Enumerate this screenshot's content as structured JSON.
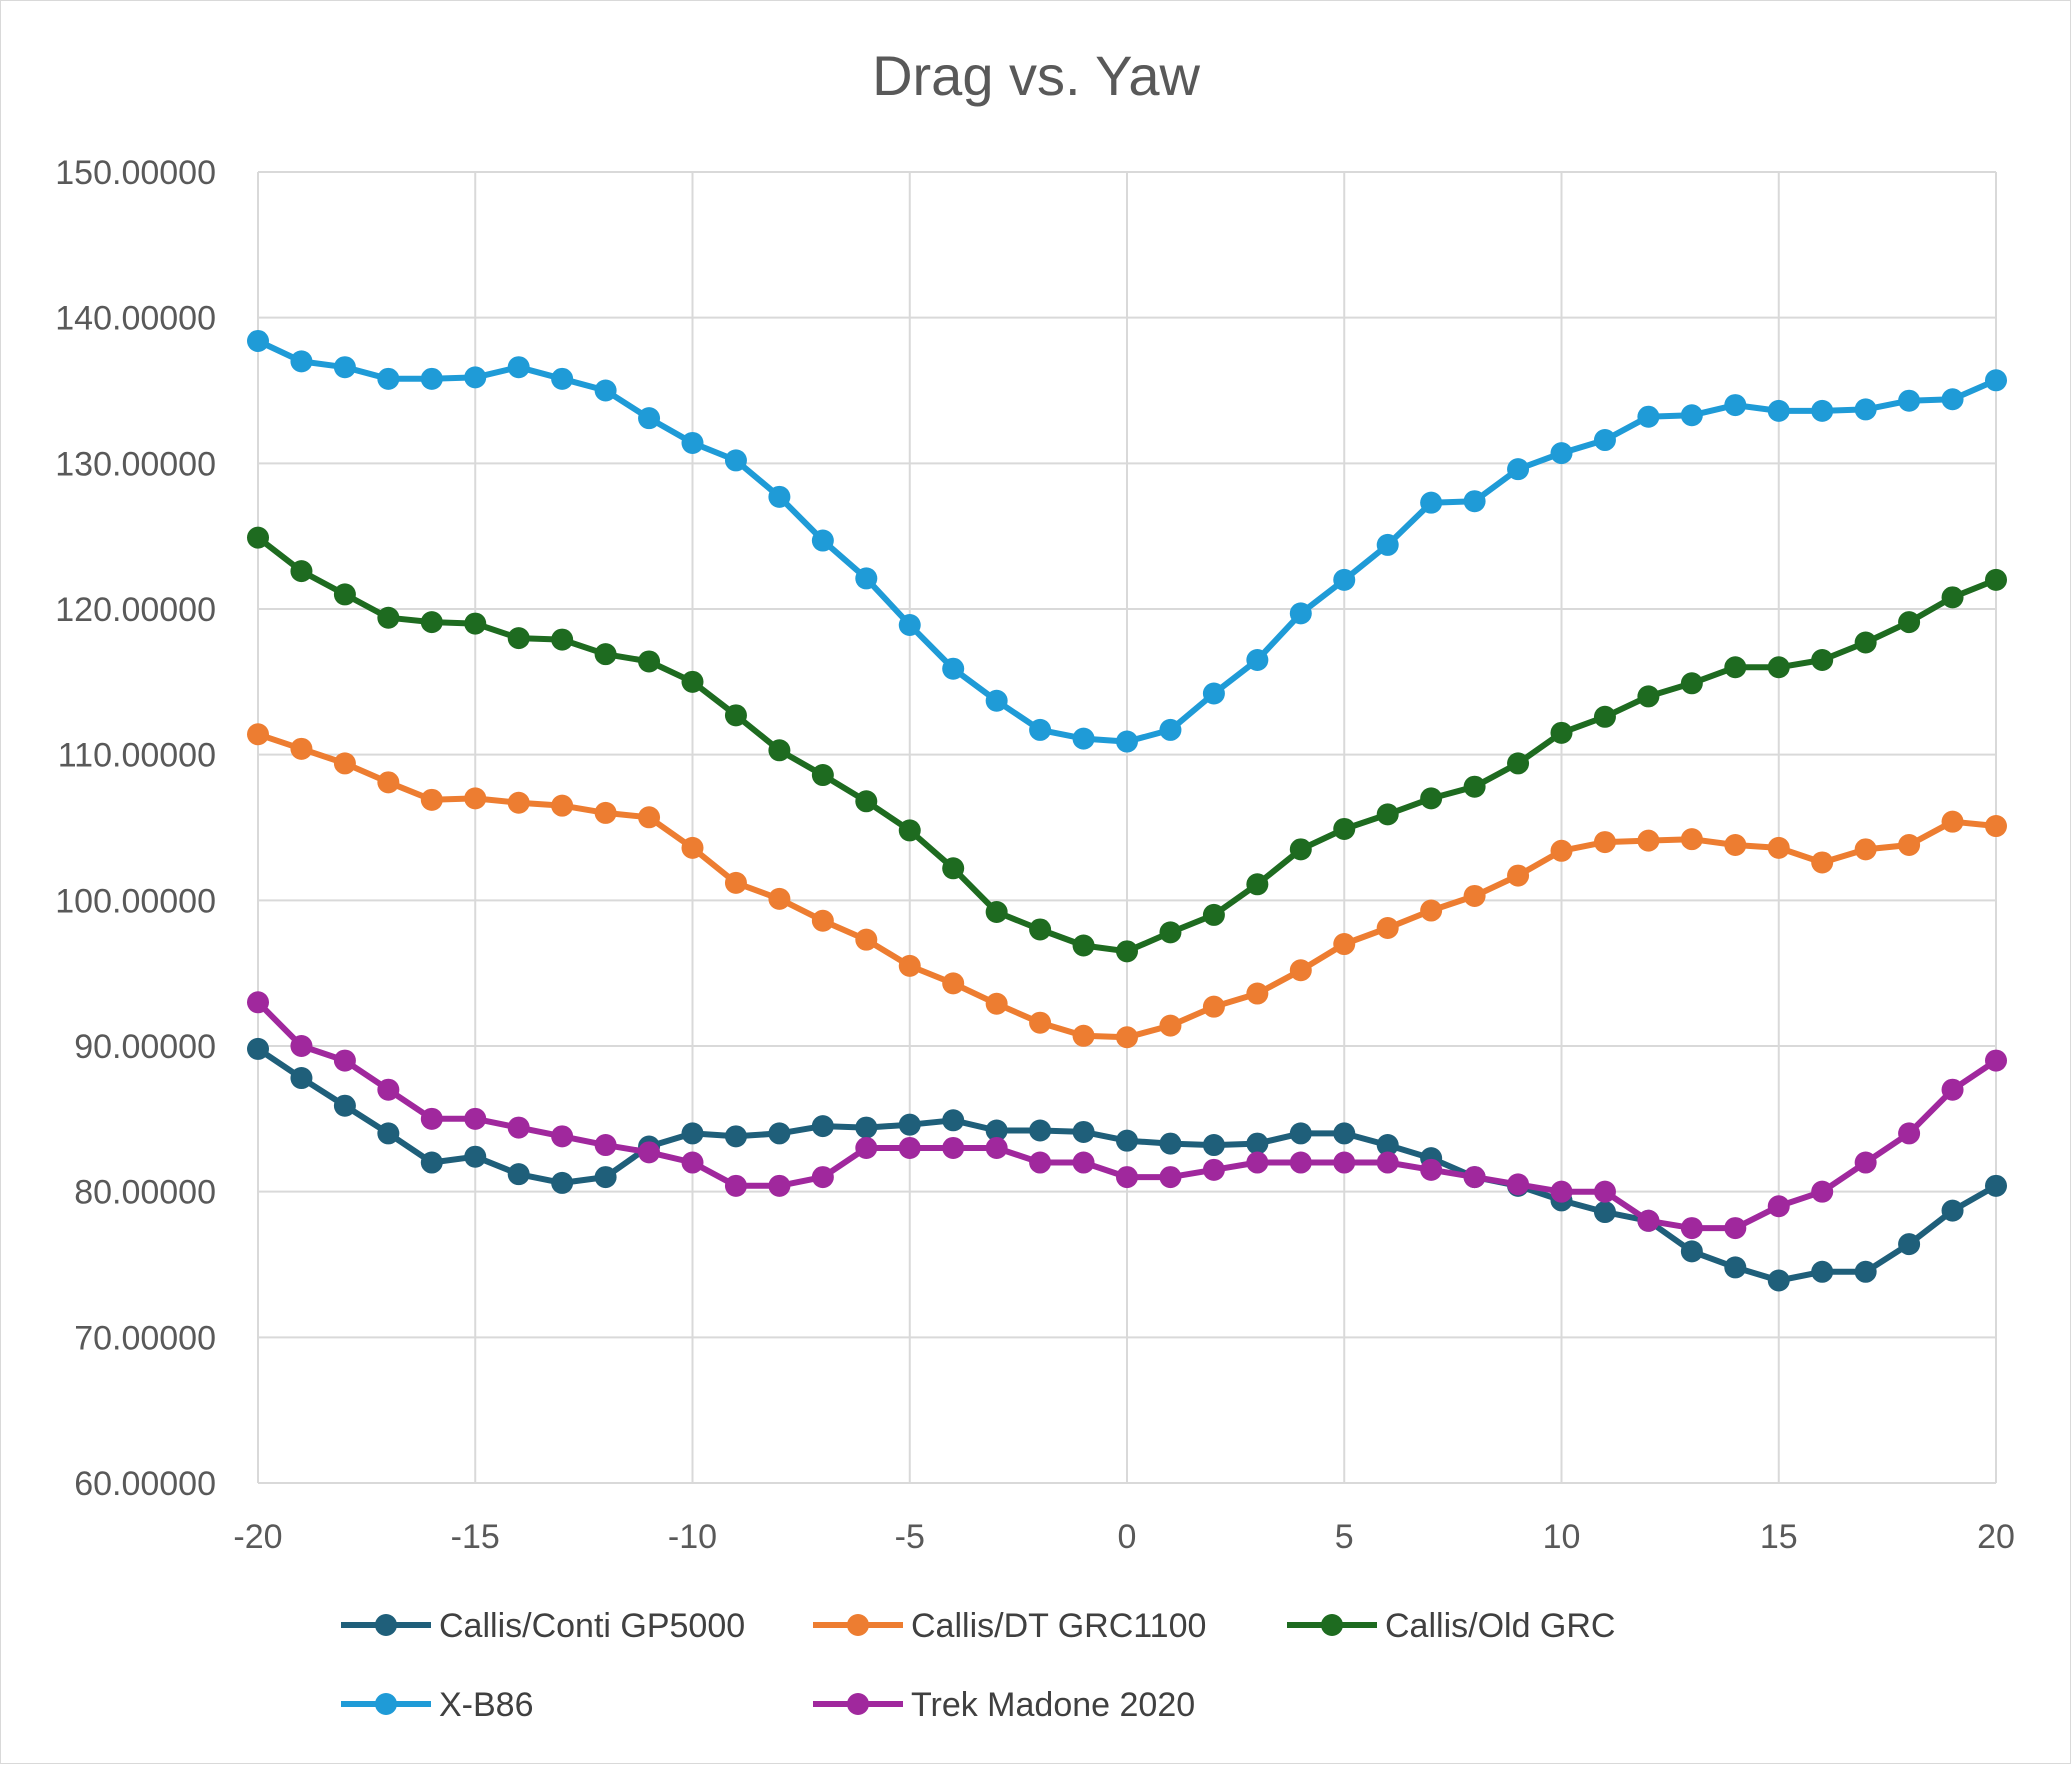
{
  "chart_data": {
    "type": "line",
    "title": "Drag vs. Yaw",
    "xlabel": "",
    "ylabel": "",
    "xlim": [
      -20,
      20
    ],
    "ylim": [
      60,
      150
    ],
    "x_ticks": [
      "-20",
      "-15",
      "-10",
      "-5",
      "0",
      "5",
      "10",
      "15",
      "20"
    ],
    "x_tick_values": [
      -20,
      -15,
      -10,
      -5,
      0,
      5,
      10,
      15,
      20
    ],
    "y_ticks": [
      "60.00000",
      "70.00000",
      "80.00000",
      "90.00000",
      "100.00000",
      "110.00000",
      "120.00000",
      "130.00000",
      "140.00000",
      "150.00000"
    ],
    "y_tick_values": [
      60,
      70,
      80,
      90,
      100,
      110,
      120,
      130,
      140,
      150
    ],
    "grid": true,
    "legend_position": "bottom",
    "x": [
      -20,
      -19,
      -18,
      -17,
      -16,
      -15,
      -14,
      -13,
      -12,
      -11,
      -10,
      -9,
      -8,
      -7,
      -6,
      -5,
      -4,
      -3,
      -2,
      -1,
      0,
      1,
      2,
      3,
      4,
      5,
      6,
      7,
      8,
      9,
      10,
      11,
      12,
      13,
      14,
      15,
      16,
      17,
      18,
      19,
      20
    ],
    "series": [
      {
        "name": "Callis/Conti GP5000",
        "color": "#1f5f7a",
        "values": [
          89.8,
          87.8,
          85.9,
          84.0,
          82.0,
          82.4,
          81.2,
          80.6,
          81.0,
          83.1,
          84.0,
          83.8,
          84.0,
          84.5,
          84.4,
          84.6,
          84.9,
          84.2,
          84.2,
          84.1,
          83.5,
          83.3,
          83.2,
          83.3,
          84.0,
          84.0,
          83.2,
          82.3,
          81.0,
          80.4,
          79.4,
          78.6,
          78.0,
          75.9,
          74.8,
          73.9,
          74.5,
          74.5,
          76.4,
          78.7,
          80.4
        ]
      },
      {
        "name": "Callis/DT GRC1100",
        "color": "#ed7d31",
        "values": [
          111.4,
          110.4,
          109.4,
          108.1,
          106.9,
          107.0,
          106.7,
          106.5,
          106.0,
          105.7,
          103.6,
          101.2,
          100.1,
          98.6,
          97.3,
          95.5,
          94.3,
          92.9,
          91.6,
          90.7,
          90.6,
          91.4,
          92.7,
          93.6,
          95.2,
          97.0,
          98.1,
          99.3,
          100.3,
          101.7,
          103.4,
          104.0,
          104.1,
          104.2,
          103.8,
          103.6,
          102.6,
          103.5,
          103.8,
          105.4,
          105.1
        ]
      },
      {
        "name": "Callis/Old GRC",
        "color": "#1e6b20",
        "values": [
          124.9,
          122.6,
          121.0,
          119.4,
          119.1,
          119.0,
          118.0,
          117.9,
          116.9,
          116.4,
          115.0,
          112.7,
          110.3,
          108.6,
          106.8,
          104.8,
          102.2,
          99.2,
          98.0,
          96.9,
          96.5,
          97.8,
          99.0,
          101.1,
          103.5,
          104.9,
          105.9,
          107.0,
          107.8,
          109.4,
          111.5,
          112.6,
          114.0,
          114.9,
          116.0,
          116.0,
          116.5,
          117.7,
          119.1,
          120.8,
          122.0
        ]
      },
      {
        "name": "X-B86",
        "color": "#1f9bd7",
        "values": [
          138.4,
          137.0,
          136.6,
          135.8,
          135.8,
          135.9,
          136.6,
          135.8,
          135.0,
          133.1,
          131.4,
          130.2,
          127.7,
          124.7,
          122.1,
          118.9,
          115.9,
          113.7,
          111.7,
          111.1,
          110.9,
          111.7,
          114.2,
          116.5,
          119.7,
          122.0,
          124.4,
          127.3,
          127.4,
          129.6,
          130.7,
          131.6,
          133.2,
          133.3,
          134.0,
          133.6,
          133.6,
          133.7,
          134.3,
          134.4,
          135.7
        ]
      },
      {
        "name": "Trek Madone 2020",
        "color": "#a0289d",
        "values": [
          93.0,
          90.0,
          89.0,
          87.0,
          85.0,
          85.0,
          84.4,
          83.8,
          83.2,
          82.7,
          82.0,
          80.4,
          80.4,
          81.0,
          83.0,
          83.0,
          83.0,
          83.0,
          82.0,
          82.0,
          81.0,
          81.0,
          81.5,
          82.0,
          82.0,
          82.0,
          82.0,
          81.5,
          81.0,
          80.5,
          80.0,
          80.0,
          78.0,
          77.5,
          77.5,
          79.0,
          80.0,
          82.0,
          84.0,
          87.0,
          89.0
        ]
      }
    ]
  }
}
